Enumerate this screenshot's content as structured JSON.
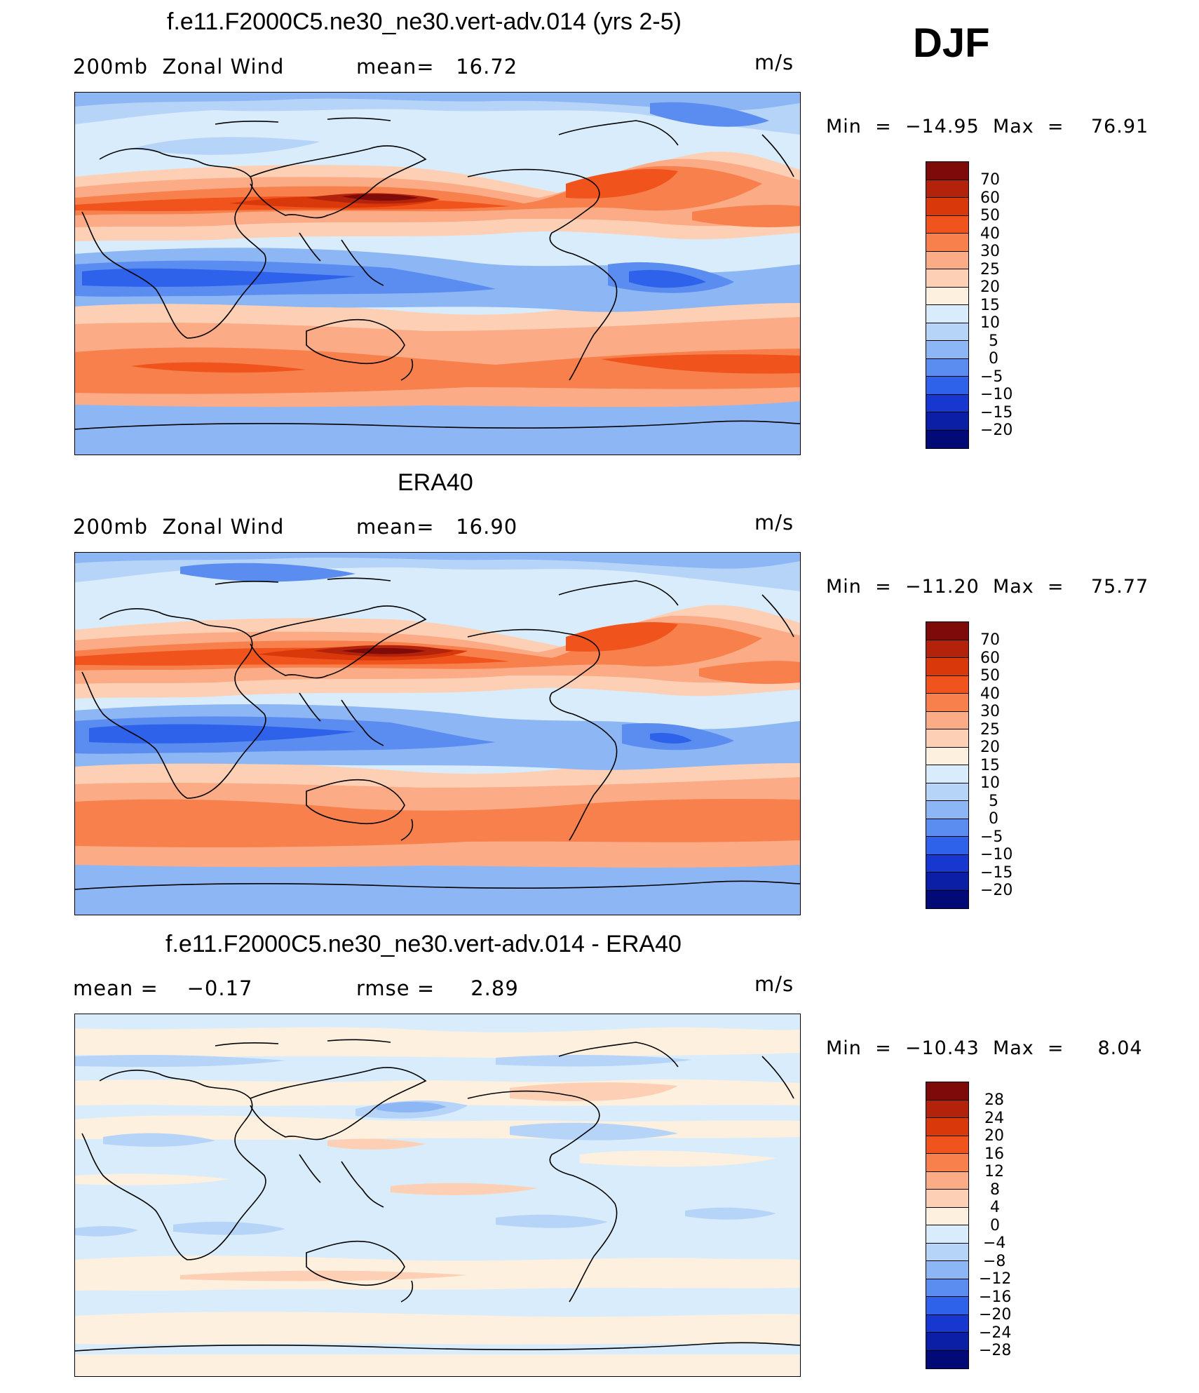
{
  "season": "DJF",
  "panels": [
    {
      "id": "model",
      "title": "f.e11.F2000C5.ne30_ne30.vert-adv.014 (yrs 2-5)",
      "left_label": "200mb  Zonal Wind",
      "center_label": "mean=   16.72",
      "units": "m/s",
      "stats": "Min  =  −14.95  Max  =    76.91",
      "colorbar": {
        "labels": [
          "70",
          "60",
          "50",
          "40",
          "30",
          "25",
          "20",
          "15",
          "10",
          "5",
          "0",
          "−5",
          "−10",
          "−15",
          "−20"
        ],
        "colors": [
          "#7f0a0a",
          "#b3230c",
          "#d9380b",
          "#f0541c",
          "#f7804d",
          "#fbab86",
          "#fdd0b5",
          "#fef0df",
          "#d9ecfb",
          "#b6d4f8",
          "#8db6f5",
          "#5b8cf0",
          "#2f62ea",
          "#1638d0",
          "#0a1fa6",
          "#020a78"
        ]
      }
    },
    {
      "id": "obs",
      "title": "ERA40",
      "left_label": "200mb  Zonal Wind",
      "center_label": "mean=   16.90",
      "units": "m/s",
      "stats": "Min  =  −11.20  Max  =    75.77",
      "colorbar": {
        "labels": [
          "70",
          "60",
          "50",
          "40",
          "30",
          "25",
          "20",
          "15",
          "10",
          "5",
          "0",
          "−5",
          "−10",
          "−15",
          "−20"
        ],
        "colors": [
          "#7f0a0a",
          "#b3230c",
          "#d9380b",
          "#f0541c",
          "#f7804d",
          "#fbab86",
          "#fdd0b5",
          "#fef0df",
          "#d9ecfb",
          "#b6d4f8",
          "#8db6f5",
          "#5b8cf0",
          "#2f62ea",
          "#1638d0",
          "#0a1fa6",
          "#020a78"
        ]
      }
    },
    {
      "id": "diff",
      "title": "f.e11.F2000C5.ne30_ne30.vert-adv.014 - ERA40",
      "left_label": "mean =    −0.17",
      "center_label": "rmse =     2.89",
      "units": "m/s",
      "stats": "Min  =  −10.43  Max  =     8.04",
      "colorbar": {
        "labels": [
          "28",
          "24",
          "20",
          "16",
          "12",
          "8",
          "4",
          "0",
          "−4",
          "−8",
          "−12",
          "−16",
          "−20",
          "−24",
          "−28"
        ],
        "colors": [
          "#7f0a0a",
          "#b3230c",
          "#d9380b",
          "#f0541c",
          "#f7804d",
          "#fbab86",
          "#fdd0b5",
          "#fef0df",
          "#d9ecfb",
          "#b6d4f8",
          "#8db6f5",
          "#5b8cf0",
          "#2f62ea",
          "#1638d0",
          "#0a1fa6",
          "#020a78"
        ]
      }
    }
  ]
}
